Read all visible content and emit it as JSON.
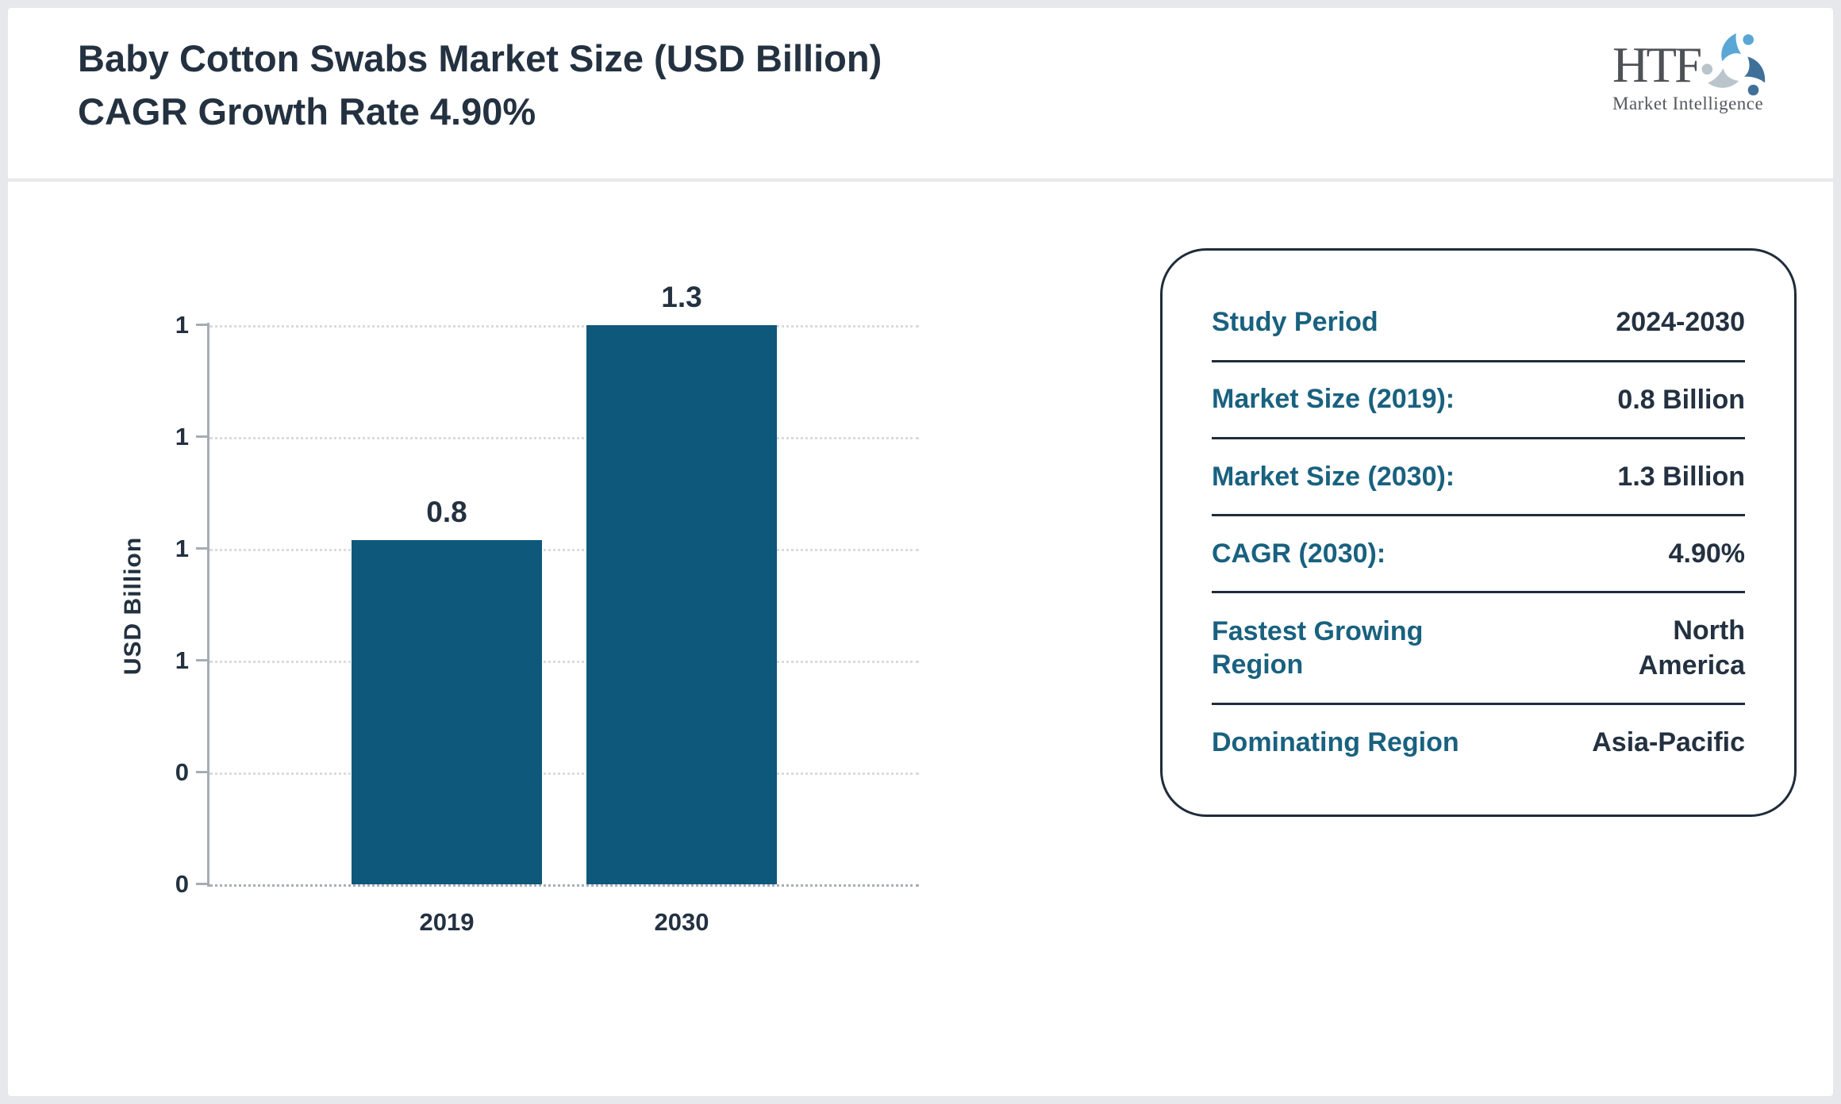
{
  "header": {
    "title_lines": [
      "Baby Cotton Swabs Market Size (USD Billion)",
      "CAGR Growth Rate 4.90%"
    ],
    "logo": {
      "name": "HTF",
      "tagline": "Market Intelligence"
    }
  },
  "chart_data": {
    "type": "bar",
    "categories": [
      "2019",
      "2030"
    ],
    "values": [
      0.8,
      1.3
    ],
    "bar_labels": [
      "0.8",
      "1.3"
    ],
    "xlabel": "",
    "ylabel": "USD Billion",
    "ylim": [
      0,
      1.3
    ],
    "yticks_display_top_to_bottom": [
      "1",
      "1",
      "1",
      "1",
      "0",
      "0"
    ],
    "grid": "horizontal-dotted",
    "legend": "none",
    "bar_color": "#0e587c"
  },
  "info_card": {
    "rows": [
      {
        "label": "Study Period",
        "value": "2024-2030"
      },
      {
        "label": "Market Size (2019):",
        "value": "0.8 Billion"
      },
      {
        "label": "Market Size (2030):",
        "value": "1.3 Billion"
      },
      {
        "label": "CAGR (2030):",
        "value": "4.90%"
      },
      {
        "label": "Fastest Growing Region",
        "value": "North America"
      },
      {
        "label": "Dominating Region",
        "value": "Asia-Pacific"
      }
    ]
  },
  "colors": {
    "accent_teal": "#19617f",
    "navy_text": "#233140",
    "bar_fill": "#0e587c",
    "axis_gray": "#a7acb3",
    "frame_gray": "#e7e8ec",
    "logo_light_blue": "#5aa7d6",
    "logo_steel_blue": "#3f7099",
    "logo_pale_blue": "#b9c4cd"
  }
}
